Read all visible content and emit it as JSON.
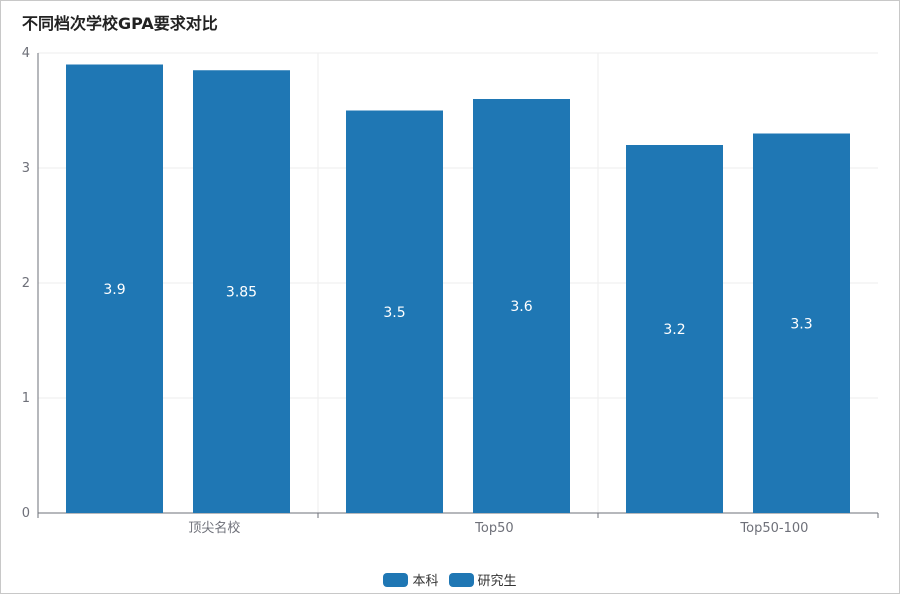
{
  "chart_data": {
    "type": "bar",
    "title": "不同档次学校GPA要求对比",
    "categories": [
      "顶尖名校",
      "Top50",
      "Top50-100"
    ],
    "series": [
      {
        "name": "本科",
        "values": [
          3.9,
          3.5,
          3.2
        ],
        "color": "#1f77b4"
      },
      {
        "name": "研究生",
        "values": [
          3.85,
          3.6,
          3.3
        ],
        "color": "#1f77b4"
      }
    ],
    "ylim": [
      0,
      4
    ],
    "yticks": [
      "0",
      "1",
      "2",
      "3",
      "4"
    ],
    "grid": true,
    "legend_position": "bottom-center",
    "data_labels": true
  }
}
